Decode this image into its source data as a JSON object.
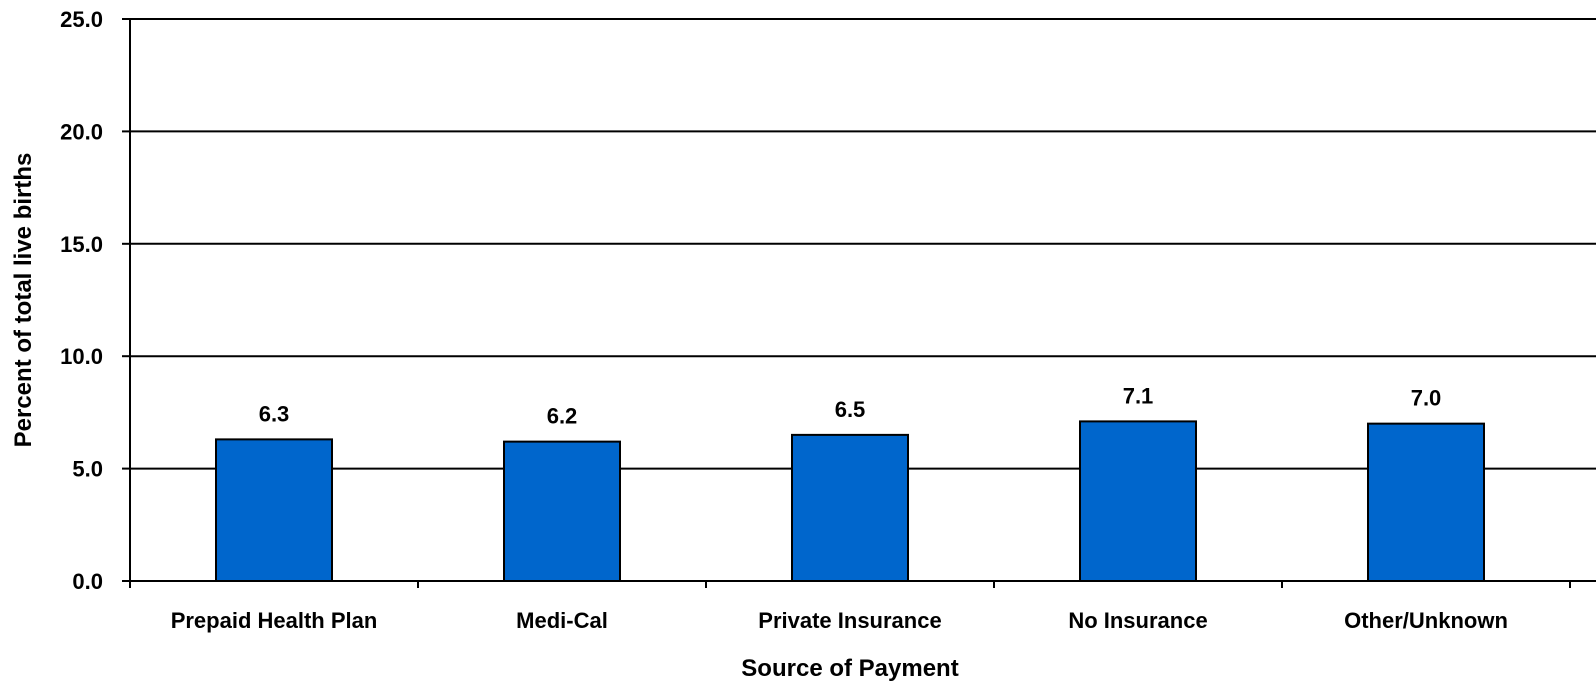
{
  "chart_data": {
    "type": "bar",
    "categories": [
      "Prepaid Health Plan",
      "Medi-Cal",
      "Private Insurance",
      "No Insurance",
      "Other/Unknown"
    ],
    "values": [
      6.3,
      6.2,
      6.5,
      7.1,
      7.0
    ],
    "data_labels": [
      "6.3",
      "6.2",
      "6.5",
      "7.1",
      "7.0"
    ],
    "yticks": [
      0,
      5,
      10,
      15,
      20,
      25
    ],
    "ytick_labels": [
      "0.0",
      "5.0",
      "10.0",
      "15.0",
      "20.0",
      "25.0"
    ],
    "ylim": [
      0,
      25
    ],
    "xlabel": "Source of Payment",
    "ylabel": "Percent of total live births",
    "grid": true,
    "bar_color": "#0066CC",
    "bar_edge_color": "#000000"
  }
}
